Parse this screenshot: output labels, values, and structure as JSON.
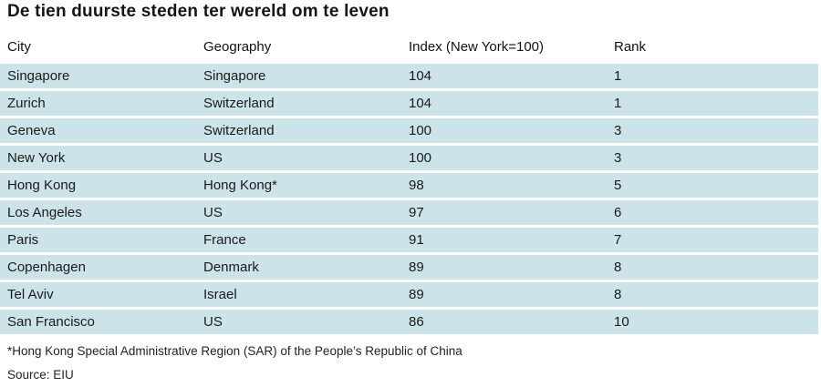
{
  "chart_data": {
    "type": "table",
    "title": "De tien duurste steden ter wereld om te leven",
    "columns": [
      "City",
      "Geography",
      "Index (New York=100)",
      "Rank"
    ],
    "rows": [
      {
        "city": "Singapore",
        "geography": "Singapore",
        "index": 104,
        "rank": 1
      },
      {
        "city": "Zurich",
        "geography": "Switzerland",
        "index": 104,
        "rank": 1
      },
      {
        "city": "Geneva",
        "geography": "Switzerland",
        "index": 100,
        "rank": 3
      },
      {
        "city": "New York",
        "geography": "US",
        "index": 100,
        "rank": 3
      },
      {
        "city": "Hong Kong",
        "geography": "Hong Kong*",
        "index": 98,
        "rank": 5
      },
      {
        "city": "Los Angeles",
        "geography": "US",
        "index": 97,
        "rank": 6
      },
      {
        "city": "Paris",
        "geography": "France",
        "index": 91,
        "rank": 7
      },
      {
        "city": "Copenhagen",
        "geography": "Denmark",
        "index": 89,
        "rank": 8
      },
      {
        "city": "Tel Aviv",
        "geography": "Israel",
        "index": 89,
        "rank": 8
      },
      {
        "city": "San Francisco",
        "geography": "US",
        "index": 86,
        "rank": 10
      }
    ],
    "footnote": "*Hong Kong Special Administrative Region (SAR) of the People’s Republic of China",
    "source": "Source: EIU",
    "layout_hints": "striped rows on light-blue background, no vertical rules, white separators between rows"
  },
  "colors": {
    "row_background": "#cde3ea",
    "title_text": "#14141e",
    "body_text": "#1a1a1a"
  }
}
